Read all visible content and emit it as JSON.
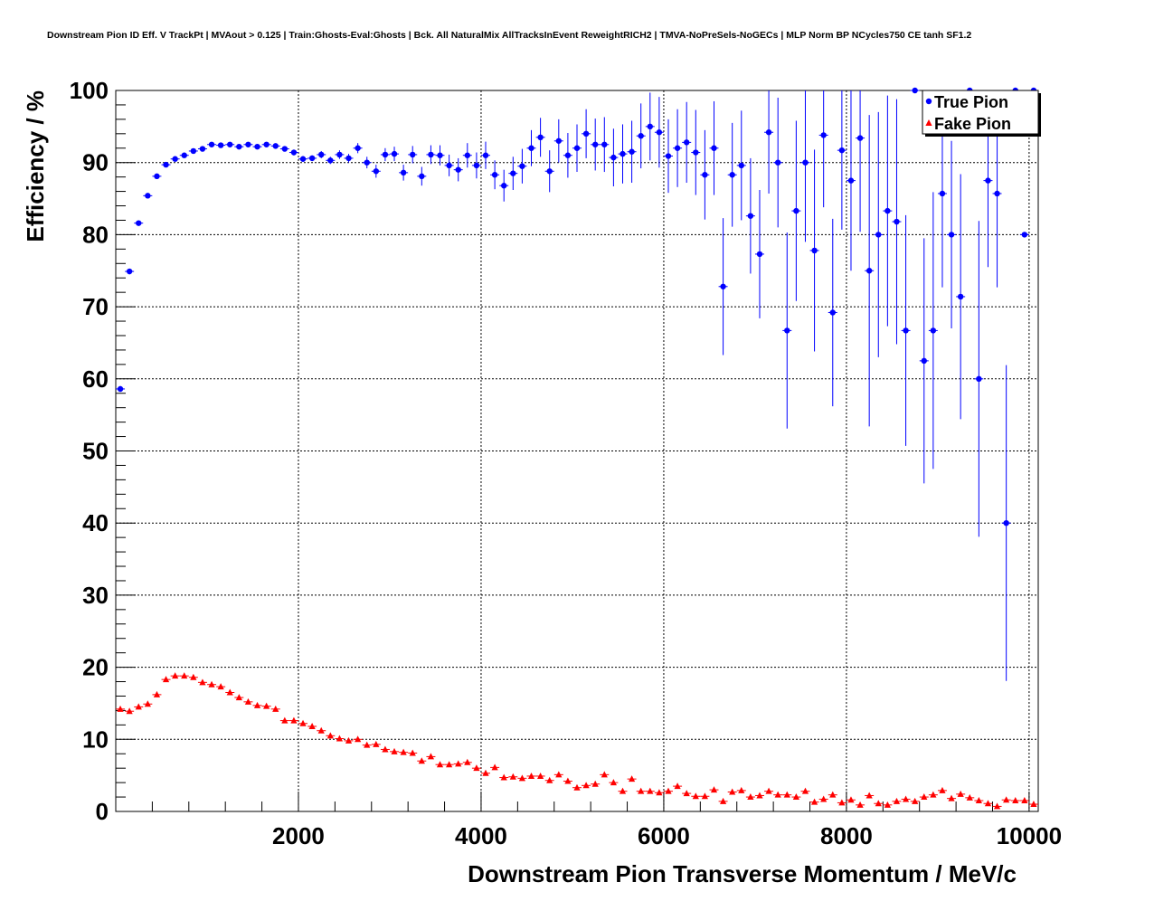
{
  "title": "Downstream Pion ID Eff. V TrackPt | MVAout > 0.125 | Train:Ghosts-Eval:Ghosts | Bck. All NaturalMix AllTracksInEvent ReweightRICH2 | TMVA-NoPreSels-NoGECs | MLP Norm BP NCycles750 CE tanh SF1.2",
  "chart_data": {
    "type": "scatter",
    "title": "Downstream Pion ID Eff. V TrackPt | MVAout > 0.125 | Train:Ghosts-Eval:Ghosts | Bck. All NaturalMix AllTracksInEvent ReweightRICH2 | TMVA-NoPreSels-NoGECs | MLP Norm BP NCycles750 CE tanh SF1.2",
    "xlabel": "Downstream Pion Transverse Momentum / MeV/c",
    "ylabel": "Efficiency / %",
    "xlim": [
      0,
      10100
    ],
    "ylim": [
      0,
      100
    ],
    "xticks": [
      2000,
      4000,
      6000,
      8000,
      10000
    ],
    "yticks": [
      0,
      10,
      20,
      30,
      40,
      50,
      60,
      70,
      80,
      90,
      100
    ],
    "grid": true,
    "legend_position": "top-right",
    "series": [
      {
        "name": "True Pion",
        "color": "#0000ff",
        "marker": "circle",
        "x": [
          50,
          150,
          250,
          350,
          450,
          550,
          650,
          750,
          850,
          950,
          1050,
          1150,
          1250,
          1350,
          1450,
          1550,
          1650,
          1750,
          1850,
          1950,
          2050,
          2150,
          2250,
          2350,
          2450,
          2550,
          2650,
          2750,
          2850,
          2950,
          3050,
          3150,
          3250,
          3350,
          3450,
          3550,
          3650,
          3750,
          3850,
          3950,
          4050,
          4150,
          4250,
          4350,
          4450,
          4550,
          4650,
          4750,
          4850,
          4950,
          5050,
          5150,
          5250,
          5350,
          5450,
          5550,
          5650,
          5750,
          5850,
          5950,
          6050,
          6150,
          6250,
          6350,
          6450,
          6550,
          6650,
          6750,
          6850,
          6950,
          7050,
          7150,
          7250,
          7350,
          7450,
          7550,
          7650,
          7750,
          7850,
          7950,
          8050,
          8150,
          8250,
          8350,
          8450,
          8550,
          8650,
          8750,
          8850,
          8950,
          9050,
          9150,
          9250,
          9350,
          9450,
          9550,
          9650,
          9750,
          9850,
          9950,
          10050
        ],
        "y": [
          58.6,
          74.9,
          81.6,
          85.4,
          88.1,
          89.7,
          90.5,
          91.0,
          91.6,
          91.9,
          92.5,
          92.4,
          92.5,
          92.2,
          92.5,
          92.2,
          92.5,
          92.3,
          91.9,
          91.4,
          90.5,
          90.6,
          91.1,
          90.3,
          91.1,
          90.6,
          92.0,
          90.0,
          88.8,
          91.1,
          91.2,
          88.6,
          91.1,
          88.1,
          91.1,
          91.0,
          89.6,
          89.0,
          91.0,
          89.6,
          91.0,
          88.3,
          86.8,
          88.5,
          89.5,
          92.0,
          93.5,
          88.8,
          93.0,
          91.0,
          92.0,
          94.0,
          92.5,
          92.5,
          90.7,
          91.2,
          91.5,
          93.7,
          95.0,
          94.2,
          90.9,
          92.0,
          92.8,
          91.4,
          88.3,
          92.0,
          72.8,
          88.3,
          89.6,
          82.6,
          77.3,
          94.2,
          90.0,
          66.7,
          83.3,
          90.0,
          77.8,
          93.8,
          69.2,
          91.7,
          87.5,
          93.4,
          75.0,
          80.0,
          83.3,
          81.8,
          66.7,
          100,
          62.5,
          66.7,
          85.7,
          80.0,
          71.4,
          100,
          60.0,
          87.5,
          85.7,
          40.0,
          100,
          80.0,
          100
        ],
        "yerr": [
          0.4,
          0.4,
          0.3,
          0.3,
          0.3,
          0.3,
          0.3,
          0.3,
          0.3,
          0.3,
          0.3,
          0.3,
          0.3,
          0.3,
          0.3,
          0.3,
          0.3,
          0.3,
          0.3,
          0.4,
          0.4,
          0.4,
          0.5,
          0.5,
          0.6,
          0.6,
          0.7,
          0.8,
          0.9,
          0.9,
          1.0,
          1.1,
          1.2,
          1.3,
          1.3,
          1.4,
          1.5,
          1.6,
          1.7,
          1.8,
          1.9,
          2.0,
          2.2,
          2.3,
          2.4,
          2.5,
          2.7,
          2.9,
          3.0,
          3.1,
          3.3,
          3.4,
          3.6,
          3.8,
          4.0,
          4.1,
          4.3,
          4.5,
          4.7,
          4.9,
          5.1,
          5.4,
          5.6,
          5.9,
          6.2,
          6.5,
          9.5,
          7.2,
          7.6,
          8.0,
          8.9,
          8.5,
          9.0,
          13.6,
          12.5,
          11.0,
          14.0,
          10.0,
          13.0,
          11.0,
          12.5,
          13.0,
          21.6,
          17.0,
          16.0,
          17.0,
          16.0,
          0,
          17.0,
          19.2,
          13.0,
          13.0,
          17.0,
          0,
          21.9,
          12.0,
          13.0,
          21.9,
          0,
          0,
          0
        ]
      },
      {
        "name": "Fake Pion",
        "color": "#ff0000",
        "marker": "triangle",
        "x": [
          50,
          150,
          250,
          350,
          450,
          550,
          650,
          750,
          850,
          950,
          1050,
          1150,
          1250,
          1350,
          1450,
          1550,
          1650,
          1750,
          1850,
          1950,
          2050,
          2150,
          2250,
          2350,
          2450,
          2550,
          2650,
          2750,
          2850,
          2950,
          3050,
          3150,
          3250,
          3350,
          3450,
          3550,
          3650,
          3750,
          3850,
          3950,
          4050,
          4150,
          4250,
          4350,
          4450,
          4550,
          4650,
          4750,
          4850,
          4950,
          5050,
          5150,
          5250,
          5350,
          5450,
          5550,
          5650,
          5750,
          5850,
          5950,
          6050,
          6150,
          6250,
          6350,
          6450,
          6550,
          6650,
          6750,
          6850,
          6950,
          7050,
          7150,
          7250,
          7350,
          7450,
          7550,
          7650,
          7750,
          7850,
          7950,
          8050,
          8150,
          8250,
          8350,
          8450,
          8550,
          8650,
          8750,
          8850,
          8950,
          9050,
          9150,
          9250,
          9350,
          9450,
          9550,
          9650,
          9750,
          9850,
          9950,
          10050
        ],
        "y": [
          14.2,
          13.9,
          14.5,
          14.9,
          16.2,
          18.3,
          18.8,
          18.8,
          18.6,
          17.9,
          17.6,
          17.3,
          16.5,
          15.8,
          15.2,
          14.7,
          14.6,
          14.2,
          12.6,
          12.6,
          12.2,
          11.8,
          11.2,
          10.5,
          10.1,
          9.8,
          10.0,
          9.2,
          9.3,
          8.6,
          8.3,
          8.2,
          8.1,
          7.0,
          7.6,
          6.5,
          6.5,
          6.6,
          6.8,
          6.0,
          5.3,
          6.1,
          4.7,
          4.8,
          4.6,
          4.9,
          4.9,
          4.3,
          5.1,
          4.2,
          3.3,
          3.6,
          3.8,
          5.1,
          4.0,
          2.8,
          4.5,
          2.8,
          2.8,
          2.6,
          2.8,
          3.5,
          2.5,
          2.1,
          2.1,
          3.0,
          1.4,
          2.7,
          2.9,
          2.0,
          2.2,
          2.8,
          2.3,
          2.3,
          2.0,
          2.8,
          1.3,
          1.7,
          2.3,
          1.2,
          1.6,
          0.9,
          2.2,
          1.1,
          0.9,
          1.4,
          1.7,
          1.4,
          2.0,
          2.3,
          2.9,
          1.8,
          2.4,
          1.9,
          1.5,
          1.1,
          0.7,
          1.6,
          1.5,
          1.5,
          1.0
        ]
      }
    ]
  }
}
